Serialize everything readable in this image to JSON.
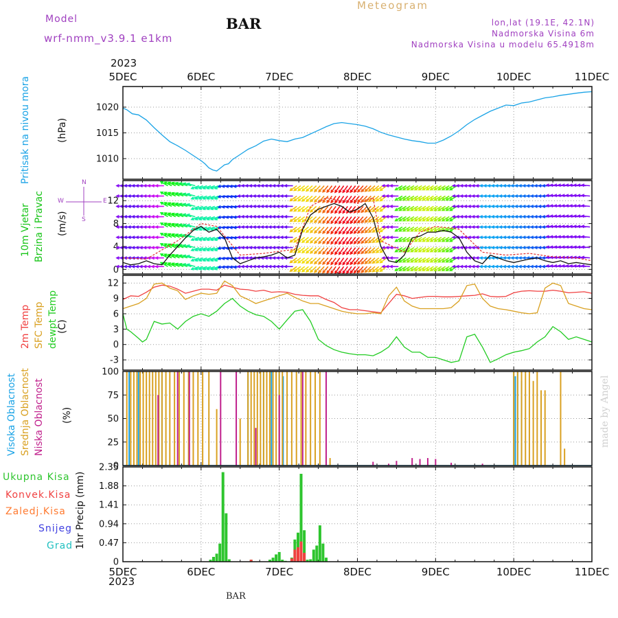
{
  "header": {
    "model_label": "Model",
    "model_name": "wrf-nmm_v3.9.1 e1km",
    "station": "BAR",
    "title": "Meteogram",
    "coords": "lon,lat (19.1E, 42.1N)",
    "elevation": "Nadmorska Visina 6m",
    "model_elevation": "Nadmorska Visina u modelu 65.4918m",
    "year": "2023",
    "footer_station": "BAR",
    "credit": "made by Angel"
  },
  "colors": {
    "pressure": "#1aa3e6",
    "wind_green": "#16c416",
    "temp2m": "#f04040",
    "sfc_temp": "#d9a020",
    "dewpt": "#22cc22",
    "high_cloud": "#1aa3e6",
    "mid_cloud": "#d9a020",
    "low_cloud": "#c0208c",
    "total_precip": "#2ec52e",
    "conv_precip": "#f04040",
    "freezing": "#ff7a30",
    "snow": "#4040e0",
    "hail": "#20c0c0",
    "model_text": "#a040c0",
    "title_text": "#d8b070"
  },
  "chart_data": [
    {
      "type": "line",
      "name": "pressure",
      "ylabel_main": "Pritisak na nivou mora",
      "ylabel_unit": "(hPa)",
      "xlim": [
        0,
        6
      ],
      "x_tick_labels": [
        "5DEC",
        "6DEC",
        "7DEC",
        "8DEC",
        "9DEC",
        "10DEC",
        "11DEC"
      ],
      "ylim": [
        1006,
        1024
      ],
      "yticks": [
        1010,
        1015,
        1020
      ],
      "grid": true,
      "series": [
        {
          "x": [
            0,
            0.05,
            0.12,
            0.2,
            0.3,
            0.4,
            0.5,
            0.6,
            0.7,
            0.8,
            0.9,
            1.0,
            1.05,
            1.1,
            1.15,
            1.2,
            1.25,
            1.3,
            1.35,
            1.4,
            1.5,
            1.6,
            1.7,
            1.8,
            1.9,
            2.0,
            2.1,
            2.2,
            2.3,
            2.4,
            2.5,
            2.6,
            2.7,
            2.8,
            2.9,
            3.0,
            3.1,
            3.2,
            3.3,
            3.4,
            3.5,
            3.6,
            3.7,
            3.8,
            3.9,
            4.0,
            4.1,
            4.2,
            4.3,
            4.4,
            4.5,
            4.6,
            4.7,
            4.8,
            4.9,
            5.0,
            5.1,
            5.2,
            5.3,
            5.4,
            5.5,
            5.6,
            5.7,
            5.8,
            5.9,
            6.0
          ],
          "y": [
            1019.8,
            1019.5,
            1018.7,
            1018.5,
            1017.5,
            1016.0,
            1014.6,
            1013.3,
            1012.5,
            1011.6,
            1010.6,
            1009.6,
            1009.0,
            1008.2,
            1007.8,
            1007.6,
            1008.2,
            1008.8,
            1009.0,
            1009.8,
            1010.8,
            1011.8,
            1012.5,
            1013.4,
            1013.8,
            1013.5,
            1013.3,
            1013.8,
            1014.1,
            1014.8,
            1015.5,
            1016.2,
            1016.8,
            1017.0,
            1016.8,
            1016.6,
            1016.3,
            1015.8,
            1015.1,
            1014.6,
            1014.2,
            1013.8,
            1013.5,
            1013.3,
            1013.0,
            1013.0,
            1013.6,
            1014.4,
            1015.4,
            1016.6,
            1017.6,
            1018.4,
            1019.2,
            1019.8,
            1020.4,
            1020.3,
            1020.8,
            1021.0,
            1021.4,
            1021.8,
            1022.0,
            1022.3,
            1022.5,
            1022.7,
            1022.9,
            1023.0
          ]
        }
      ]
    },
    {
      "type": "line",
      "name": "wind",
      "ylabel_main": "10m Vjetar",
      "ylabel_sub": "Brzina i Pravac",
      "ylabel_unit": "(m/s)",
      "compass": {
        "n": "N",
        "w": "W",
        "e": "E",
        "s": "S"
      },
      "xlim": [
        0,
        6
      ],
      "ylim": [
        -0.8,
        15.5
      ],
      "yticks": [
        0,
        4,
        8,
        12
      ],
      "grid": true,
      "speed": {
        "x": [
          0,
          0.1,
          0.2,
          0.3,
          0.4,
          0.5,
          0.6,
          0.7,
          0.8,
          0.9,
          1.0,
          1.1,
          1.2,
          1.3,
          1.4,
          1.5,
          1.6,
          1.7,
          1.8,
          1.9,
          2.0,
          2.1,
          2.2,
          2.3,
          2.4,
          2.5,
          2.6,
          2.7,
          2.8,
          2.9,
          3.0,
          3.1,
          3.2,
          3.3,
          3.4,
          3.5,
          3.6,
          3.7,
          3.8,
          3.9,
          4.0,
          4.1,
          4.2,
          4.3,
          4.4,
          4.5,
          4.6,
          4.7,
          4.8,
          4.9,
          5.0,
          5.1,
          5.2,
          5.3,
          5.4,
          5.5,
          5.6,
          5.7,
          5.8,
          5.9,
          6.0
        ],
        "y": [
          1.2,
          0.8,
          1.0,
          1.5,
          1.0,
          0.8,
          2.5,
          4.0,
          5.5,
          6.8,
          7.5,
          6.5,
          7.0,
          5.5,
          2.0,
          1.0,
          1.5,
          2.0,
          2.2,
          2.5,
          3.0,
          2.0,
          2.5,
          7.0,
          9.5,
          10.5,
          11.0,
          11.5,
          11.0,
          10.0,
          10.5,
          11.5,
          9.0,
          4.0,
          1.5,
          1.2,
          2.5,
          5.5,
          5.8,
          6.5,
          6.5,
          6.8,
          6.5,
          5.5,
          3.0,
          1.5,
          1.0,
          2.5,
          2.0,
          1.5,
          1.2,
          1.5,
          1.8,
          2.0,
          1.5,
          1.2,
          1.5,
          1.0,
          1.2,
          1.0,
          0.8
        ]
      },
      "gust_max_x": [
        0.0,
        0.3,
        0.7,
        1.0,
        1.2,
        1.5,
        1.8,
        2.2,
        2.4,
        2.6,
        2.8,
        3.0,
        3.2,
        3.3,
        3.6,
        3.8,
        4.0,
        4.3,
        4.6,
        4.9,
        5.2,
        5.5,
        5.8,
        6.0
      ],
      "gust_max_y": [
        2.0,
        1.8,
        5.0,
        8.0,
        7.5,
        2.5,
        2.8,
        3.5,
        11.0,
        12.5,
        12.0,
        11.5,
        12.5,
        5.0,
        3.0,
        6.5,
        7.5,
        7.0,
        3.0,
        2.5,
        2.8,
        2.2,
        2.0,
        1.5
      ],
      "arrow_rows": [
        0.5,
        2.0,
        3.8,
        5.6,
        7.4,
        9.2,
        11.0,
        12.8,
        14.6
      ]
    },
    {
      "type": "line",
      "name": "temperature",
      "ylabel_main": "2m Temp",
      "ylabel_sub": "SFC Temp",
      "ylabel_sub2": "dewpt Temp",
      "ylabel_unit": "(C)",
      "xlim": [
        0,
        6
      ],
      "ylim": [
        -5,
        13.5
      ],
      "yticks": [
        -3,
        0,
        3,
        6,
        9,
        12
      ],
      "grid": true,
      "series": [
        {
          "key": "temp2m",
          "x": [
            0,
            0.1,
            0.2,
            0.3,
            0.4,
            0.5,
            0.6,
            0.7,
            0.8,
            0.9,
            1.0,
            1.1,
            1.2,
            1.3,
            1.4,
            1.5,
            1.6,
            1.7,
            1.8,
            1.9,
            2.0,
            2.1,
            2.2,
            2.3,
            2.4,
            2.5,
            2.6,
            2.7,
            2.8,
            2.9,
            3.0,
            3.1,
            3.2,
            3.3,
            3.4,
            3.5,
            3.6,
            3.7,
            3.8,
            3.9,
            4.0,
            4.1,
            4.2,
            4.3,
            4.4,
            4.5,
            4.6,
            4.7,
            4.8,
            4.9,
            5.0,
            5.1,
            5.2,
            5.3,
            5.4,
            5.5,
            5.6,
            5.7,
            5.8,
            5.9,
            6.0
          ],
          "y": [
            8.8,
            9.5,
            9.4,
            10.2,
            11.2,
            11.6,
            11.4,
            10.8,
            10.0,
            10.4,
            10.8,
            10.8,
            10.6,
            11.6,
            11.2,
            10.8,
            10.7,
            10.4,
            10.6,
            10.2,
            10.3,
            10.2,
            9.8,
            9.6,
            9.5,
            9.5,
            8.8,
            8.2,
            7.2,
            6.8,
            6.8,
            6.6,
            6.4,
            6.2,
            8.0,
            9.8,
            9.5,
            9.0,
            9.2,
            9.4,
            9.4,
            9.3,
            9.3,
            9.4,
            9.5,
            9.6,
            9.9,
            9.4,
            9.3,
            9.4,
            10.1,
            10.4,
            10.5,
            10.4,
            10.4,
            10.6,
            10.4,
            10.1,
            10.2,
            10.3,
            10.0
          ]
        },
        {
          "key": "sfc_temp",
          "x": [
            0,
            0.1,
            0.2,
            0.3,
            0.4,
            0.5,
            0.6,
            0.7,
            0.8,
            0.9,
            1.0,
            1.1,
            1.2,
            1.3,
            1.4,
            1.5,
            1.6,
            1.7,
            1.8,
            1.9,
            2.0,
            2.1,
            2.2,
            2.3,
            2.4,
            2.5,
            2.6,
            2.7,
            2.8,
            2.9,
            3.0,
            3.1,
            3.2,
            3.3,
            3.4,
            3.5,
            3.6,
            3.7,
            3.8,
            3.9,
            4.0,
            4.1,
            4.2,
            4.3,
            4.4,
            4.5,
            4.6,
            4.7,
            4.8,
            4.9,
            5.0,
            5.1,
            5.2,
            5.3,
            5.4,
            5.5,
            5.6,
            5.7,
            5.8,
            5.9,
            6.0
          ],
          "y": [
            7.0,
            7.5,
            8.0,
            9.0,
            11.8,
            12.0,
            11.0,
            10.5,
            8.8,
            9.5,
            10.0,
            9.8,
            10.0,
            12.4,
            11.5,
            9.5,
            8.8,
            8.0,
            8.5,
            9.0,
            9.5,
            10.0,
            9.2,
            8.5,
            8.0,
            8.0,
            7.5,
            7.0,
            6.5,
            6.2,
            6.0,
            6.0,
            6.2,
            6.0,
            9.5,
            11.2,
            8.5,
            7.5,
            7.0,
            7.0,
            7.0,
            7.0,
            7.2,
            8.5,
            11.5,
            11.8,
            9.0,
            7.5,
            7.0,
            6.8,
            6.5,
            6.2,
            6.0,
            6.2,
            11.0,
            12.0,
            11.5,
            8.0,
            7.5,
            7.0,
            6.8
          ]
        },
        {
          "key": "dewpt",
          "x": [
            0,
            0.05,
            0.1,
            0.2,
            0.25,
            0.3,
            0.4,
            0.5,
            0.6,
            0.7,
            0.8,
            0.9,
            1.0,
            1.1,
            1.2,
            1.3,
            1.4,
            1.5,
            1.6,
            1.7,
            1.8,
            1.9,
            2.0,
            2.1,
            2.2,
            2.3,
            2.4,
            2.5,
            2.6,
            2.7,
            2.8,
            2.9,
            3.0,
            3.1,
            3.2,
            3.3,
            3.4,
            3.5,
            3.6,
            3.7,
            3.8,
            3.9,
            4.0,
            4.1,
            4.2,
            4.3,
            4.4,
            4.5,
            4.6,
            4.7,
            4.8,
            4.9,
            5.0,
            5.1,
            5.2,
            5.3,
            5.4,
            5.5,
            5.6,
            5.7,
            5.8,
            5.9,
            6.0
          ],
          "y": [
            6.0,
            3.0,
            2.5,
            1.2,
            0.5,
            1.0,
            4.5,
            4.0,
            4.2,
            3.0,
            4.5,
            5.5,
            6.0,
            5.5,
            6.5,
            8.0,
            9.0,
            7.5,
            6.5,
            5.8,
            5.5,
            4.5,
            3.0,
            4.8,
            6.5,
            6.8,
            4.5,
            1.0,
            -0.2,
            -1.0,
            -1.5,
            -1.8,
            -2.0,
            -2.0,
            -2.2,
            -1.5,
            -0.5,
            1.5,
            -0.5,
            -1.5,
            -1.5,
            -2.5,
            -2.5,
            -3.0,
            -3.5,
            -3.2,
            1.5,
            2.0,
            -0.5,
            -3.5,
            -2.8,
            -2.0,
            -1.5,
            -1.2,
            -0.8,
            0.5,
            1.5,
            3.5,
            2.5,
            1.0,
            1.5,
            1.0,
            0.5
          ]
        }
      ]
    },
    {
      "type": "bar",
      "name": "clouds",
      "ylabel_main": "Visoka Oblacnost",
      "ylabel_sub": "Srednja Oblacnost",
      "ylabel_sub2": "Niska Oblacnost",
      "ylabel_unit": "(%)",
      "xlim": [
        0,
        6
      ],
      "ylim": [
        0,
        100
      ],
      "yticks": [
        0,
        25,
        50,
        75,
        100
      ],
      "grid": true,
      "series": [
        {
          "key": "high_cloud",
          "x": [
            0.08,
            0.2,
            0.5,
            1.6,
            1.8,
            1.9,
            2.0,
            2.05,
            5.0,
            5.02,
            5.05,
            5.1
          ],
          "y": [
            100,
            100,
            100,
            100,
            100,
            100,
            100,
            95,
            100,
            95,
            100,
            90
          ]
        },
        {
          "key": "mid_cloud",
          "x": [
            0.05,
            0.1,
            0.14,
            0.18,
            0.22,
            0.26,
            0.3,
            0.34,
            0.38,
            0.42,
            0.46,
            0.5,
            0.55,
            0.6,
            0.66,
            0.72,
            0.78,
            0.84,
            0.9,
            0.96,
            1.02,
            1.1,
            1.2,
            1.5,
            1.6,
            1.64,
            1.68,
            1.72,
            1.76,
            1.8,
            1.84,
            1.88,
            1.92,
            1.96,
            2.0,
            2.04,
            2.1,
            2.16,
            2.22,
            2.28,
            2.34,
            2.4,
            2.46,
            2.52,
            2.6,
            2.65,
            5.0,
            5.05,
            5.1,
            5.15,
            5.2,
            5.25,
            5.3,
            5.35,
            5.4,
            5.6,
            5.65
          ],
          "y": [
            100,
            100,
            100,
            100,
            100,
            100,
            100,
            100,
            100,
            100,
            100,
            100,
            100,
            100,
            100,
            100,
            100,
            100,
            100,
            100,
            100,
            100,
            60,
            50,
            100,
            100,
            100,
            100,
            100,
            100,
            100,
            100,
            100,
            100,
            100,
            100,
            100,
            100,
            100,
            100,
            100,
            100,
            100,
            100,
            10,
            8,
            100,
            100,
            100,
            100,
            100,
            90,
            100,
            80,
            80,
            100,
            18
          ]
        },
        {
          "key": "low_cloud",
          "x": [
            0.45,
            0.7,
            0.85,
            1.25,
            1.45,
            1.7,
            2.0,
            2.3,
            2.6,
            3.2,
            3.4,
            3.5,
            3.7,
            3.8,
            3.9,
            4.0,
            4.2,
            4.6
          ],
          "y": [
            75,
            100,
            100,
            100,
            100,
            40,
            75,
            100,
            100,
            4,
            2,
            5,
            8,
            7,
            8,
            7,
            3,
            2
          ]
        }
      ]
    },
    {
      "type": "bar",
      "name": "precip",
      "ylabel_main": "1hr Precip (mm)",
      "legend": [
        "Ukupna Kisa",
        "Konvek.Kisa",
        "Zaledj.Kisa",
        "Snijeg",
        "Grad"
      ],
      "xlim": [
        0,
        6
      ],
      "ylim": [
        0,
        2.35
      ],
      "yticks": [
        0,
        0.47,
        0.94,
        1.41,
        1.88,
        2.35
      ],
      "ytick_labels": [
        "0",
        "0.47",
        "0.94",
        "1.41",
        "1.88",
        "2.35"
      ],
      "grid": true,
      "series": [
        {
          "key": "total_precip",
          "x": [
            1.12,
            1.16,
            1.2,
            1.24,
            1.28,
            1.32,
            1.36,
            1.64,
            1.88,
            1.92,
            1.96,
            2.0,
            2.04,
            2.08,
            2.16,
            2.2,
            2.24,
            2.28,
            2.32,
            2.36,
            2.4,
            2.44,
            2.48,
            2.52,
            2.56,
            2.6
          ],
          "y": [
            0.05,
            0.12,
            0.2,
            0.45,
            2.22,
            1.2,
            0.06,
            0.05,
            0.05,
            0.1,
            0.18,
            0.24,
            0.05,
            0.02,
            0.1,
            0.55,
            0.72,
            2.18,
            0.78,
            0.05,
            0.06,
            0.3,
            0.4,
            0.9,
            0.45,
            0.1
          ]
        },
        {
          "key": "conv_precip",
          "x": [
            1.64,
            2.16,
            2.2,
            2.24,
            2.28,
            2.32
          ],
          "y": [
            0.05,
            0.08,
            0.3,
            0.36,
            0.5,
            0.22
          ]
        }
      ]
    }
  ]
}
